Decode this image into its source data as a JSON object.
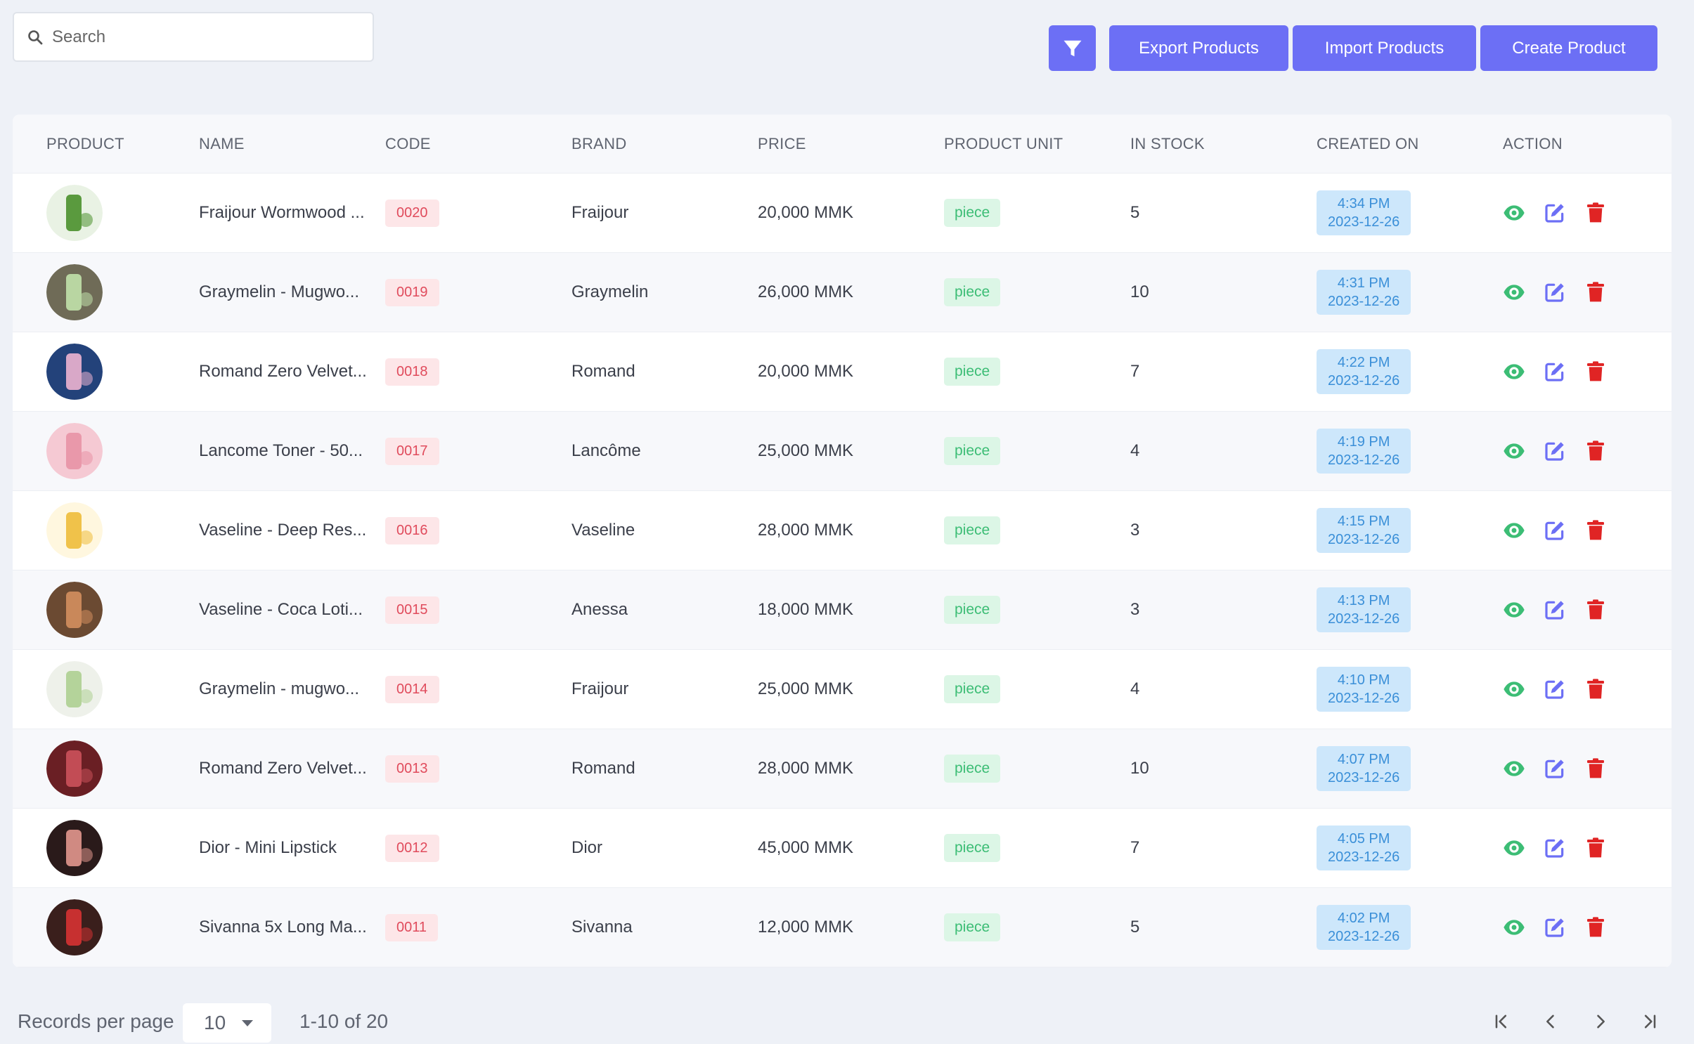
{
  "search": {
    "placeholder": "Search"
  },
  "toolbar": {
    "filter_icon": "filter-icon",
    "export_label": "Export Products",
    "import_label": "Import Products",
    "create_label": "Create Product"
  },
  "colors": {
    "accent": "#6c6ff5",
    "code_badge_bg": "#fde6e8",
    "code_badge_text": "#e04b5c",
    "unit_badge_bg": "#dcf6e6",
    "unit_badge_text": "#3cbd75",
    "date_badge_bg": "#cde7fb",
    "date_badge_text": "#3a8fd8",
    "view_icon": "#3cbd75",
    "edit_icon": "#6c6ff5",
    "delete_icon": "#e02424"
  },
  "table": {
    "headers": [
      "PRODUCT",
      "NAME",
      "CODE",
      "BRAND",
      "PRICE",
      "PRODUCT UNIT",
      "IN STOCK",
      "CREATED ON",
      "ACTION"
    ],
    "rows": [
      {
        "name": "Fraijour Wormwood ...",
        "code": "0020",
        "brand": "Fraijour",
        "price": "20,000 MMK",
        "unit": "piece",
        "stock": "5",
        "time": "4:34 PM",
        "date": "2023-12-26"
      },
      {
        "name": "Graymelin - Mugwo...",
        "code": "0019",
        "brand": "Graymelin",
        "price": "26,000 MMK",
        "unit": "piece",
        "stock": "10",
        "time": "4:31 PM",
        "date": "2023-12-26"
      },
      {
        "name": "Romand Zero Velvet...",
        "code": "0018",
        "brand": "Romand",
        "price": "20,000 MMK",
        "unit": "piece",
        "stock": "7",
        "time": "4:22 PM",
        "date": "2023-12-26"
      },
      {
        "name": "Lancome Toner - 50...",
        "code": "0017",
        "brand": "Lancôme",
        "price": "25,000 MMK",
        "unit": "piece",
        "stock": "4",
        "time": "4:19 PM",
        "date": "2023-12-26"
      },
      {
        "name": "Vaseline - Deep Res...",
        "code": "0016",
        "brand": "Vaseline",
        "price": "28,000 MMK",
        "unit": "piece",
        "stock": "3",
        "time": "4:15 PM",
        "date": "2023-12-26"
      },
      {
        "name": "Vaseline - Coca Loti...",
        "code": "0015",
        "brand": "Anessa",
        "price": "18,000 MMK",
        "unit": "piece",
        "stock": "3",
        "time": "4:13 PM",
        "date": "2023-12-26"
      },
      {
        "name": "Graymelin - mugwo...",
        "code": "0014",
        "brand": "Fraijour",
        "price": "25,000 MMK",
        "unit": "piece",
        "stock": "4",
        "time": "4:10 PM",
        "date": "2023-12-26"
      },
      {
        "name": "Romand Zero Velvet...",
        "code": "0013",
        "brand": "Romand",
        "price": "28,000 MMK",
        "unit": "piece",
        "stock": "10",
        "time": "4:07 PM",
        "date": "2023-12-26"
      },
      {
        "name": "Dior - Mini Lipstick",
        "code": "0012",
        "brand": "Dior",
        "price": "45,000 MMK",
        "unit": "piece",
        "stock": "7",
        "time": "4:05 PM",
        "date": "2023-12-26"
      },
      {
        "name": "Sivanna 5x Long Ma...",
        "code": "0011",
        "brand": "Sivanna",
        "price": "12,000 MMK",
        "unit": "piece",
        "stock": "5",
        "time": "4:02 PM",
        "date": "2023-12-26"
      }
    ]
  },
  "pagination": {
    "records_label": "Records per page",
    "per_page": "10",
    "range": "1-10 of 20"
  }
}
